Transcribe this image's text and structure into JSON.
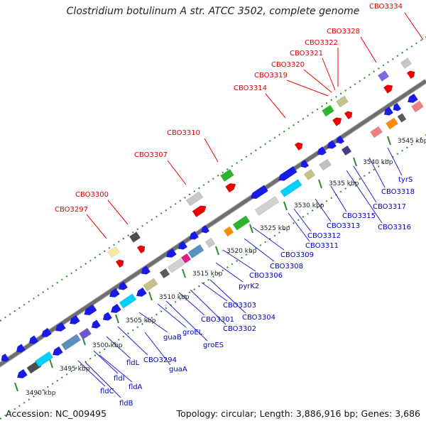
{
  "title": "Clostridium botulinum A str. ATCC 3502, complete genome",
  "footer": {
    "accession": "Accession: NC_009495",
    "summary": "Topology: circular; Length: 3,886,916 bp; Genes: 3,686"
  },
  "scale_labels": [
    "3490 kbp",
    "3495 kbp",
    "3500 kbp",
    "3505 kbp",
    "3510 kbp",
    "3515 kbp",
    "3520 kbp",
    "3525 kbp",
    "3530 kbp",
    "3535 kbp",
    "3540 kbp",
    "3545 kbp"
  ],
  "forward_labels": [
    "CBO3297",
    "CBO3300",
    "CBO3307",
    "CBO3310",
    "CBO3314",
    "CBO3319",
    "CBO3320",
    "CBO3321",
    "CBO3322",
    "CBO3328",
    "CBO3334"
  ],
  "reverse_labels": [
    "fldB",
    "fldC",
    "fldA",
    "fldI",
    "fldL",
    "CBO3294",
    "guaA",
    "guaB",
    "groEL",
    "groES",
    "CBO3301",
    "CBO3302",
    "CBO3303",
    "CBO3304",
    "pyrK2",
    "CBO3306",
    "CBO3308",
    "CBO3309",
    "CBO3311",
    "CBO3312",
    "CBO3313",
    "CBO3315",
    "CBO3316",
    "CBO3317",
    "CBO3318",
    "tyrS"
  ]
}
